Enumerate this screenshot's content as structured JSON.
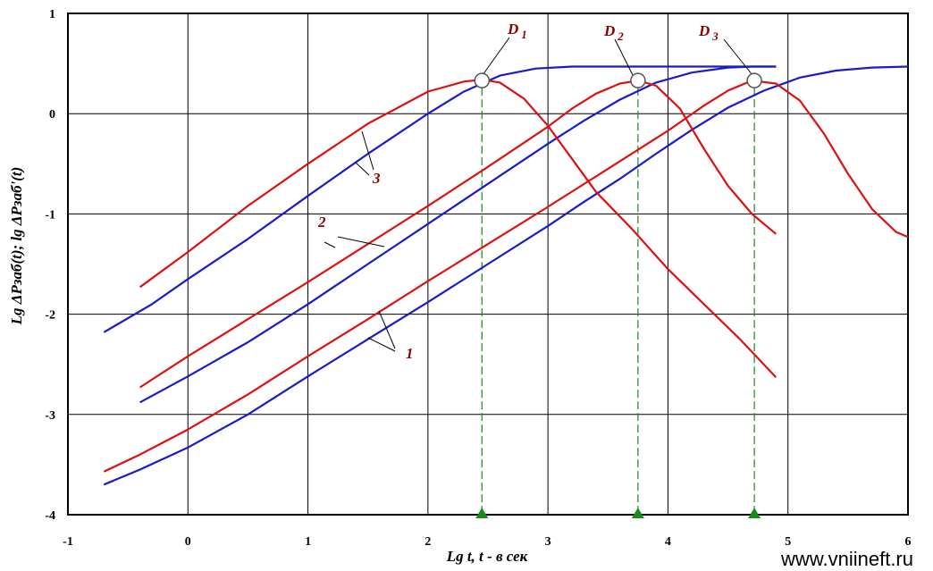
{
  "chart_data": {
    "type": "line",
    "title": "",
    "xlabel": "Lg t, t - в сек",
    "ylabel": "Lg  ΔPзаб(t);  lg  ΔPзаб'(t)",
    "xlim": [
      -1,
      6
    ],
    "ylim": [
      -4,
      1
    ],
    "x_ticks": [
      "-1",
      "0",
      "1",
      "2",
      "3",
      "4",
      "5",
      "6"
    ],
    "y_ticks": [
      "1",
      "0",
      "-1",
      "-2",
      "-3",
      "-4"
    ],
    "grid": true,
    "colors": {
      "blue": "#1a1acd",
      "red": "#dd1111",
      "green": "#1a8a1a",
      "label": "#8b0000"
    },
    "series": [
      {
        "curve": "1",
        "kind": "pressure",
        "color": "blue",
        "x": [
          -0.7,
          -0.4,
          0,
          0.5,
          1,
          1.5,
          2,
          2.5,
          3,
          3.3,
          3.6,
          3.9,
          4.2,
          4.5,
          4.8,
          5.1,
          5.4,
          5.7,
          6.0
        ],
        "y": [
          -3.7,
          -3.55,
          -3.33,
          -3.0,
          -2.62,
          -2.25,
          -1.88,
          -1.5,
          -1.12,
          -0.88,
          -0.65,
          -0.4,
          -0.16,
          0.06,
          0.23,
          0.36,
          0.43,
          0.46,
          0.47
        ]
      },
      {
        "curve": "1",
        "kind": "derivative",
        "color": "red",
        "x": [
          -0.7,
          -0.4,
          0,
          0.5,
          1,
          1.5,
          2,
          2.5,
          3,
          3.5,
          4,
          4.3,
          4.5,
          4.7,
          4.9,
          5.1,
          5.3,
          5.5,
          5.7,
          5.9,
          6.0
        ],
        "y": [
          -3.57,
          -3.4,
          -3.15,
          -2.8,
          -2.42,
          -2.05,
          -1.67,
          -1.3,
          -0.93,
          -0.55,
          -0.17,
          0.08,
          0.23,
          0.33,
          0.3,
          0.13,
          -0.2,
          -0.6,
          -0.95,
          -1.18,
          -1.23
        ]
      },
      {
        "curve": "2",
        "kind": "pressure",
        "color": "blue",
        "x": [
          -0.4,
          0,
          0.5,
          1,
          1.5,
          2,
          2.5,
          3,
          3.3,
          3.6,
          3.9,
          4.2,
          4.5,
          4.7,
          4.9
        ],
        "y": [
          -2.88,
          -2.62,
          -2.28,
          -1.9,
          -1.5,
          -1.1,
          -0.7,
          -0.3,
          -0.07,
          0.14,
          0.31,
          0.41,
          0.46,
          0.47,
          0.47
        ]
      },
      {
        "curve": "2",
        "kind": "derivative",
        "color": "red",
        "x": [
          -0.4,
          0,
          0.5,
          1,
          1.5,
          2,
          2.5,
          3,
          3.2,
          3.4,
          3.6,
          3.75,
          3.9,
          4.1,
          4.3,
          4.5,
          4.7,
          4.9
        ],
        "y": [
          -2.73,
          -2.42,
          -2.05,
          -1.68,
          -1.3,
          -0.92,
          -0.53,
          -0.13,
          0.05,
          0.2,
          0.3,
          0.33,
          0.28,
          0.05,
          -0.35,
          -0.72,
          -1.0,
          -1.2
        ]
      },
      {
        "curve": "3",
        "kind": "pressure",
        "color": "blue",
        "x": [
          -0.7,
          -0.3,
          0,
          0.5,
          1,
          1.5,
          2,
          2.3,
          2.6,
          2.9,
          3.2,
          3.5,
          4.0,
          4.5,
          4.9
        ],
        "y": [
          -2.18,
          -1.9,
          -1.65,
          -1.25,
          -0.82,
          -0.4,
          0.0,
          0.22,
          0.38,
          0.45,
          0.47,
          0.47,
          0.47,
          0.47,
          0.47
        ]
      },
      {
        "curve": "3",
        "kind": "derivative",
        "color": "red",
        "x": [
          -0.4,
          0,
          0.5,
          1,
          1.5,
          2,
          2.3,
          2.45,
          2.6,
          2.8,
          3.0,
          3.2,
          3.4,
          3.7,
          4.0,
          4.3,
          4.6,
          4.9
        ],
        "y": [
          -1.73,
          -1.38,
          -0.92,
          -0.5,
          -0.1,
          0.22,
          0.32,
          0.34,
          0.31,
          0.15,
          -0.12,
          -0.45,
          -0.78,
          -1.15,
          -1.55,
          -1.9,
          -2.25,
          -2.63
        ]
      }
    ],
    "points": [
      {
        "name": "D1",
        "letter": "D",
        "sub": "1",
        "x": 2.45,
        "y": 0.33
      },
      {
        "name": "D2",
        "letter": "D",
        "sub": "2",
        "x": 3.75,
        "y": 0.33
      },
      {
        "name": "D3",
        "letter": "D",
        "sub": "3",
        "x": 4.72,
        "y": 0.33
      }
    ],
    "markers_x": [
      2.45,
      3.75,
      4.72
    ],
    "curve_labels": [
      "1",
      "2",
      "3"
    ]
  },
  "watermark": "www.vniineft.ru"
}
